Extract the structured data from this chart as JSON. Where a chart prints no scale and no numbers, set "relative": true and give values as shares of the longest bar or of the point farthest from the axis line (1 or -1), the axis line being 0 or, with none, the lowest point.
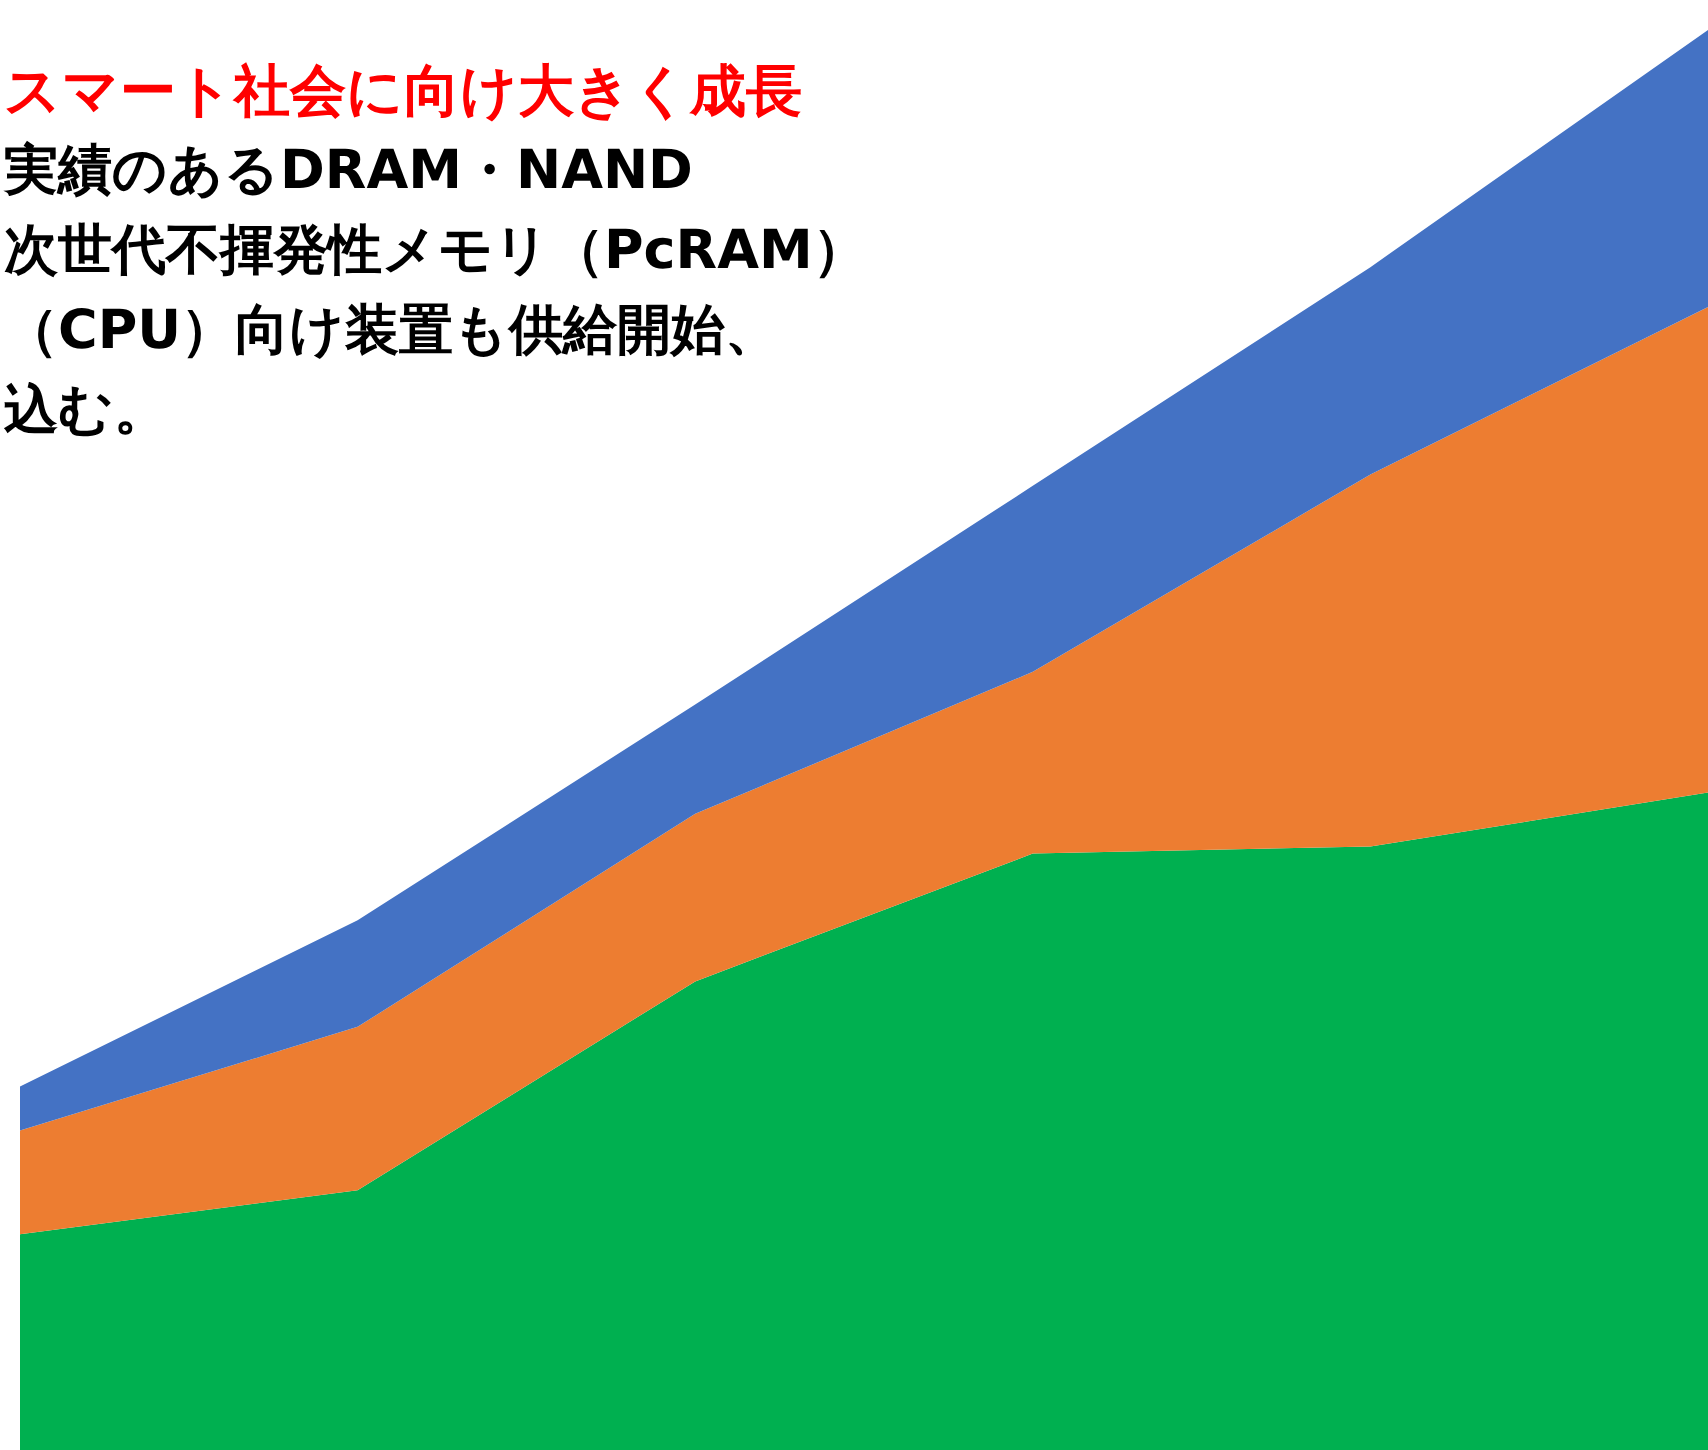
{
  "chart_data": {
    "type": "area",
    "title": "スマート社会に向け大きく成長",
    "annotations": [
      "実績のあるDRAM・NAND",
      "次世代不揮発性メモリ（PcRAM）",
      "（CPU）向け装置も供給開始、",
      "込む。"
    ],
    "categories": [
      null,
      null,
      null,
      null,
      null,
      null
    ],
    "relative": true,
    "stacked": true,
    "series": [
      {
        "color": "#00b050",
        "values": [
          0.152,
          0.183,
          0.33,
          0.42,
          0.425,
          0.463
        ]
      },
      {
        "color": "#ed7d31",
        "values": [
          0.073,
          0.115,
          0.118,
          0.128,
          0.262,
          0.342
        ]
      },
      {
        "color": "#4472c4",
        "values": [
          0.031,
          0.075,
          0.077,
          0.131,
          0.146,
          0.195
        ]
      }
    ]
  }
}
